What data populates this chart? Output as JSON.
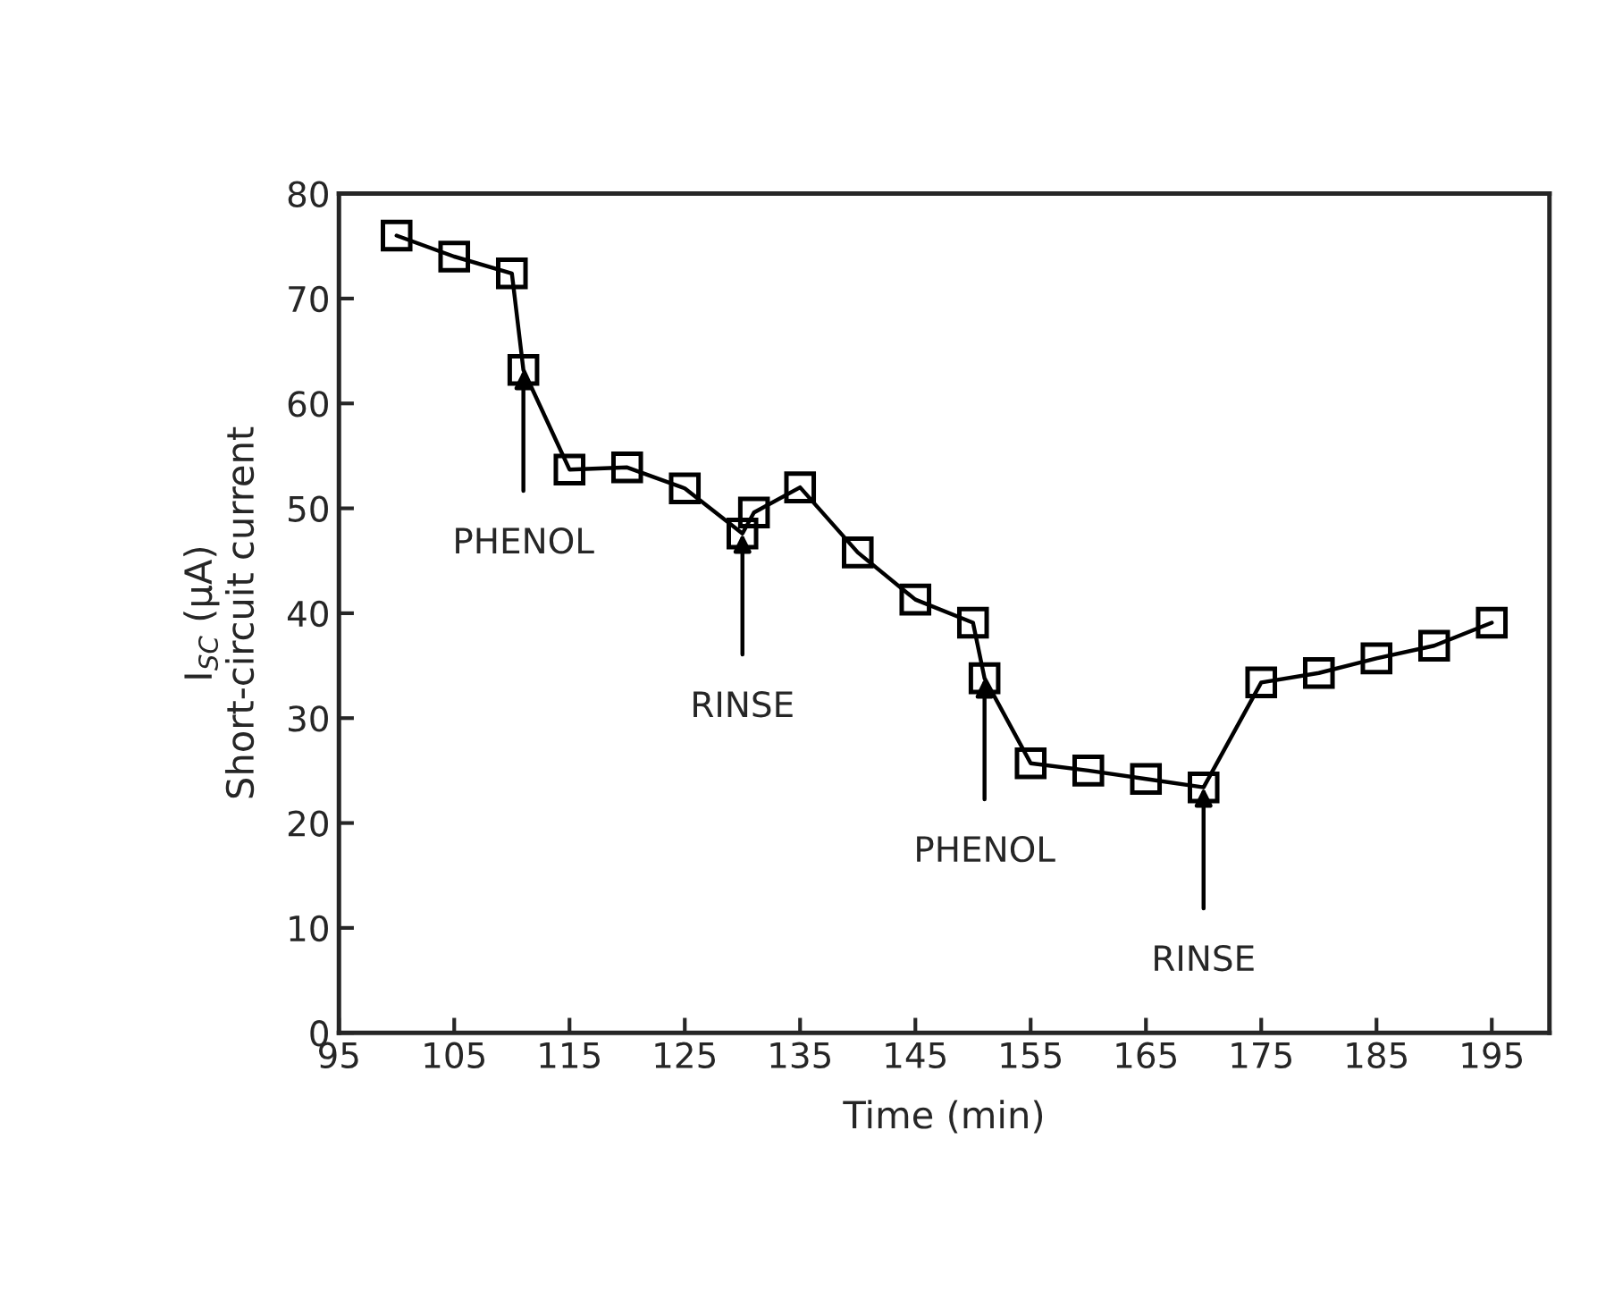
{
  "chart_data": {
    "type": "line",
    "xlabel": "Time (min)",
    "ylabel": "I$_{SC}$ (μA)\nShort-circuit current",
    "x": [
      100,
      105,
      110,
      111,
      115,
      120,
      125,
      130,
      131,
      135,
      140,
      145,
      150,
      151,
      155,
      160,
      165,
      170,
      175,
      180,
      185,
      190,
      195
    ],
    "series": [
      {
        "color": "#000000",
        "values": [
          76.0,
          74.0,
          72.4,
          63.2,
          53.7,
          53.9,
          51.9,
          47.6,
          49.6,
          52.0,
          45.8,
          41.3,
          39.1,
          33.8,
          25.7,
          25.0,
          24.2,
          23.4,
          33.4,
          34.3,
          35.7,
          36.9,
          39.1
        ]
      }
    ],
    "marker": "square",
    "line_style": "solid",
    "grid": false,
    "xlim": [
      95,
      200
    ],
    "ylim": [
      0,
      80
    ],
    "xticks": [
      95,
      105,
      115,
      125,
      135,
      145,
      155,
      165,
      175,
      185,
      195
    ],
    "yticks": [
      0,
      10,
      20,
      30,
      40,
      50,
      60,
      70,
      80
    ],
    "annotations": [
      {
        "text": "PHENOL",
        "x": 111,
        "y": 63.2
      },
      {
        "text": "RINSE",
        "x": 130,
        "y": 47.6
      },
      {
        "text": "PHENOL",
        "x": 151,
        "y": 33.8
      },
      {
        "text": "RINSE",
        "x": 170,
        "y": 23.4
      }
    ]
  }
}
